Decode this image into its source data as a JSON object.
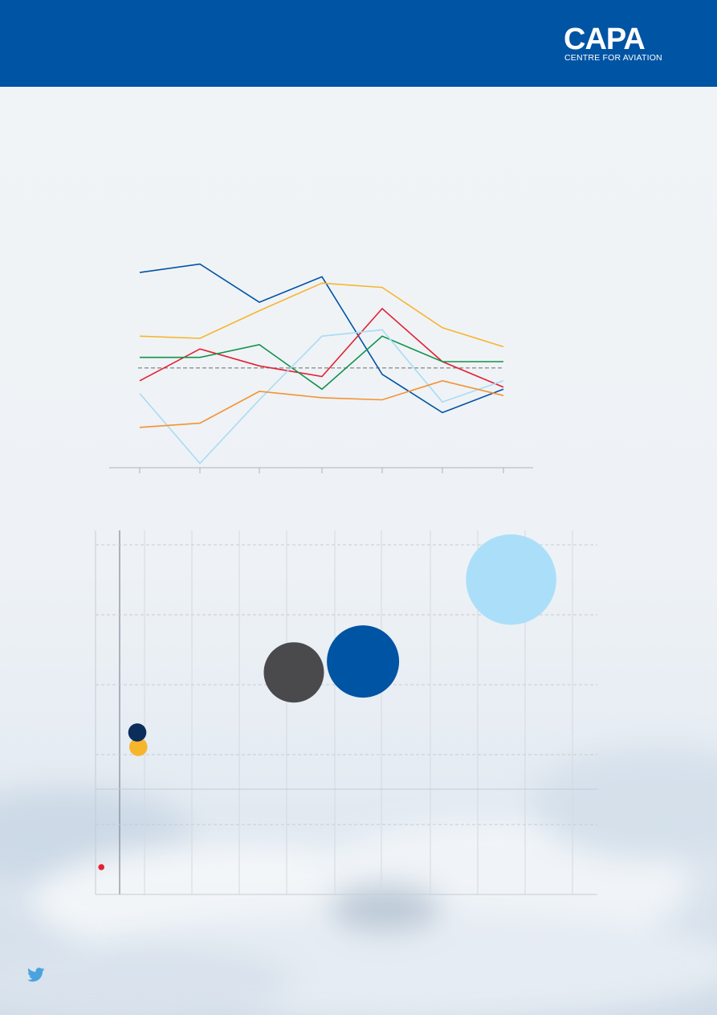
{
  "brand": {
    "logo_word": "CAPA",
    "logo_sub": "CENTRE FOR AVIATION",
    "header_color": "#0054a4"
  },
  "icons": [
    "twitter-icon"
  ],
  "chart_data": [
    {
      "type": "line",
      "title": "",
      "xlabel": "",
      "ylabel": "",
      "grid": false,
      "x": [
        1,
        2,
        3,
        4,
        5,
        6,
        7
      ],
      "ylim": [
        0,
        100
      ],
      "reference_line": 47,
      "series": [
        {
          "color": "#0054a4",
          "values": [
            92,
            96,
            78,
            90,
            44,
            26,
            37
          ]
        },
        {
          "color": "#f7b52c",
          "values": [
            62,
            61,
            74,
            87,
            85,
            66,
            57
          ]
        },
        {
          "color": "#e32131",
          "values": [
            41,
            56,
            48,
            43,
            75,
            50,
            38
          ]
        },
        {
          "color": "#12924b",
          "values": [
            52,
            52,
            58,
            37,
            62,
            50,
            50
          ]
        },
        {
          "color": "#a9dcf3",
          "values": [
            35,
            2,
            32,
            62,
            65,
            31,
            41
          ]
        },
        {
          "color": "#f39331",
          "values": [
            19,
            21,
            36,
            33,
            32,
            41,
            34
          ]
        }
      ]
    },
    {
      "type": "scatter",
      "title": "",
      "xlabel": "",
      "ylabel": "",
      "grid": true,
      "xlim": [
        0,
        100
      ],
      "ylim": [
        0,
        100
      ],
      "points": [
        {
          "x": 1,
          "y": 7.5,
          "size": 1,
          "color": "#e32131"
        },
        {
          "x": 8.5,
          "y": 40.5,
          "size": 3,
          "color": "#f7b52c"
        },
        {
          "x": 8.3,
          "y": 44.5,
          "size": 3,
          "color": "#0b2d5c"
        },
        {
          "x": 40,
          "y": 61,
          "size": 10,
          "color": "#4a4a4c"
        },
        {
          "x": 54,
          "y": 64,
          "size": 12,
          "color": "#0054a4"
        },
        {
          "x": 84,
          "y": 86.5,
          "size": 15,
          "color": "#abdff9"
        }
      ]
    }
  ]
}
